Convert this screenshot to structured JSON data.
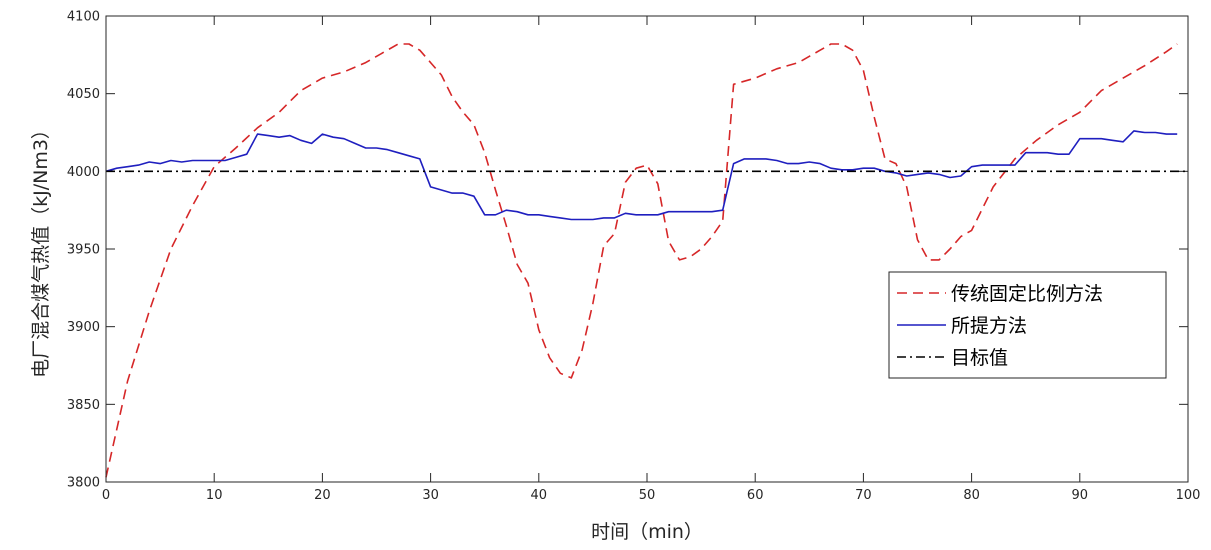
{
  "chart_data": {
    "type": "line",
    "xlabel": "时间（min）",
    "ylabel": "电厂混合煤气热值（kJ/Nm3）",
    "xlim": [
      0,
      100
    ],
    "ylim": [
      3800,
      4100
    ],
    "xticks": [
      0,
      10,
      20,
      30,
      40,
      50,
      60,
      70,
      80,
      90,
      100
    ],
    "yticks": [
      3800,
      3850,
      3900,
      3950,
      4000,
      4050,
      4100
    ],
    "grid": false,
    "legend_position": "lower-right",
    "series": [
      {
        "name": "传统固定比例方法",
        "color": "#d62728",
        "dash": "dashed",
        "x": [
          0,
          2,
          4,
          6,
          8,
          10,
          12,
          14,
          16,
          18,
          20,
          22,
          24,
          26,
          27,
          28,
          29,
          30,
          31,
          32,
          33,
          34,
          35,
          36,
          37,
          38,
          39,
          40,
          41,
          42,
          43,
          44,
          45,
          46,
          47,
          48,
          49,
          50,
          51,
          52,
          53,
          54,
          55,
          56,
          57,
          58,
          59,
          60,
          62,
          64,
          66,
          67,
          68,
          69,
          70,
          71,
          72,
          73,
          74,
          75,
          76,
          77,
          78,
          79,
          80,
          82,
          84,
          86,
          88,
          90,
          92,
          94,
          96,
          98,
          99
        ],
        "y": [
          3803,
          3865,
          3910,
          3950,
          3978,
          4003,
          4015,
          4028,
          4038,
          4052,
          4060,
          4064,
          4070,
          4078,
          4082,
          4082,
          4078,
          4070,
          4062,
          4048,
          4038,
          4030,
          4012,
          3988,
          3965,
          3940,
          3928,
          3898,
          3880,
          3870,
          3867,
          3885,
          3915,
          3952,
          3960,
          3993,
          4002,
          4004,
          3992,
          3955,
          3943,
          3945,
          3950,
          3958,
          3968,
          4056,
          4058,
          4060,
          4066,
          4070,
          4078,
          4082,
          4082,
          4078,
          4065,
          4035,
          4008,
          4005,
          3990,
          3956,
          3943,
          3943,
          3950,
          3958,
          3962,
          3990,
          4008,
          4020,
          4030,
          4038,
          4052,
          4060,
          4068,
          4077,
          4082
        ]
      },
      {
        "name": "所提方法",
        "color": "#1f1fbf",
        "dash": "solid",
        "x": [
          0,
          1,
          2,
          3,
          4,
          5,
          6,
          7,
          8,
          9,
          10,
          11,
          12,
          13,
          14,
          15,
          16,
          17,
          18,
          19,
          20,
          21,
          22,
          23,
          24,
          25,
          26,
          27,
          28,
          29,
          30,
          31,
          32,
          33,
          34,
          35,
          36,
          37,
          38,
          39,
          40,
          41,
          42,
          43,
          44,
          45,
          46,
          47,
          48,
          49,
          50,
          51,
          52,
          53,
          54,
          55,
          56,
          57,
          58,
          59,
          60,
          61,
          62,
          63,
          64,
          65,
          66,
          67,
          68,
          69,
          70,
          71,
          72,
          73,
          74,
          75,
          76,
          77,
          78,
          79,
          80,
          81,
          82,
          83,
          84,
          85,
          86,
          87,
          88,
          89,
          90,
          91,
          92,
          93,
          94,
          95,
          96,
          97,
          98,
          99
        ],
        "y": [
          4000,
          4002,
          4003,
          4004,
          4006,
          4005,
          4007,
          4006,
          4007,
          4007,
          4007,
          4007,
          4009,
          4011,
          4024,
          4023,
          4022,
          4023,
          4020,
          4018,
          4024,
          4022,
          4021,
          4018,
          4015,
          4015,
          4014,
          4012,
          4010,
          4008,
          3990,
          3988,
          3986,
          3986,
          3984,
          3972,
          3972,
          3975,
          3974,
          3972,
          3972,
          3971,
          3970,
          3969,
          3969,
          3969,
          3970,
          3970,
          3973,
          3972,
          3972,
          3972,
          3974,
          3974,
          3974,
          3974,
          3974,
          3975,
          4005,
          4008,
          4008,
          4008,
          4007,
          4005,
          4005,
          4006,
          4005,
          4002,
          4001,
          4001,
          4002,
          4002,
          4000,
          3999,
          3997,
          3998,
          3999,
          3998,
          3996,
          3997,
          4003,
          4004,
          4004,
          4004,
          4004,
          4012,
          4012,
          4012,
          4011,
          4011,
          4021,
          4021,
          4021,
          4020,
          4019,
          4026,
          4025,
          4025,
          4024,
          4024
        ]
      },
      {
        "name": "目标值",
        "color": "#000000",
        "dash": "dashdot",
        "x": [
          0,
          100
        ],
        "y": [
          4000,
          4000
        ]
      }
    ]
  }
}
